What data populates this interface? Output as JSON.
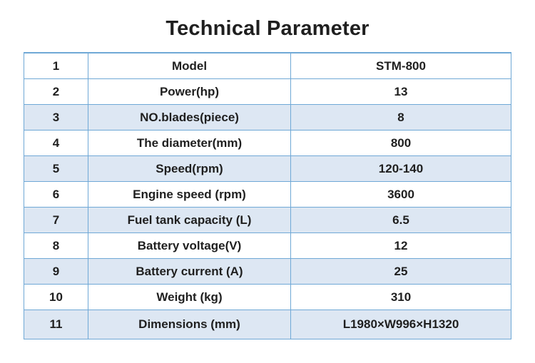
{
  "title": "Technical Parameter",
  "table": {
    "rows": [
      {
        "no": "1",
        "parameter": "Model",
        "value": "STM-800"
      },
      {
        "no": "2",
        "parameter": "Power(hp)",
        "value": "13"
      },
      {
        "no": "3",
        "parameter": "NO.blades(piece)",
        "value": "8"
      },
      {
        "no": "4",
        "parameter": "The diameter(mm)",
        "value": "800"
      },
      {
        "no": "5",
        "parameter": "Speed(rpm)",
        "value": "120-140"
      },
      {
        "no": "6",
        "parameter": "Engine speed (rpm)",
        "value": "3600"
      },
      {
        "no": "7",
        "parameter": "Fuel tank capacity (L)",
        "value": "6.5"
      },
      {
        "no": "8",
        "parameter": "Battery voltage(V)",
        "value": "12"
      },
      {
        "no": "9",
        "parameter": "Battery current (A)",
        "value": "25"
      },
      {
        "no": "10",
        "parameter": "Weight (kg)",
        "value": "310"
      },
      {
        "no": "11",
        "parameter": "Dimensions (mm)",
        "value": "L1980×W996×H1320"
      }
    ]
  },
  "colors": {
    "border": "#6fa8d6",
    "shaded_row": "#dde7f3",
    "text": "#1f1f1f"
  }
}
